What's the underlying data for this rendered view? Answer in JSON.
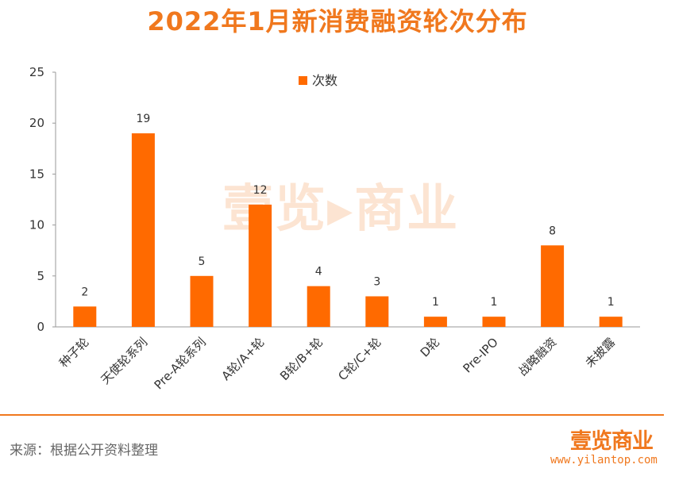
{
  "chart_data": {
    "type": "bar",
    "title": "2022年1月新消费融资轮次分布",
    "categories": [
      "种子轮",
      "天使轮系列",
      "Pre-A轮系列",
      "A轮/A+轮",
      "B轮/B+轮",
      "C轮/C+轮",
      "D轮",
      "Pre-IPO",
      "战略融资",
      "未披露"
    ],
    "series": [
      {
        "name": "次数",
        "values": [
          2,
          19,
          5,
          12,
          4,
          3,
          1,
          1,
          8,
          1
        ]
      }
    ],
    "ylim": [
      0,
      25
    ],
    "yticks": [
      0,
      5,
      10,
      15,
      20,
      25
    ],
    "grid": false,
    "legend": "top-center",
    "bar_color": "#ff6a00",
    "data_labels": true
  },
  "footer": {
    "source": "来源：根据公开资料整理",
    "brand": "壹览商业",
    "url": "www.yilantop.com"
  },
  "watermark": "壹览商业",
  "colors": {
    "accent": "#f0781e",
    "bar": "#ff6a00"
  }
}
